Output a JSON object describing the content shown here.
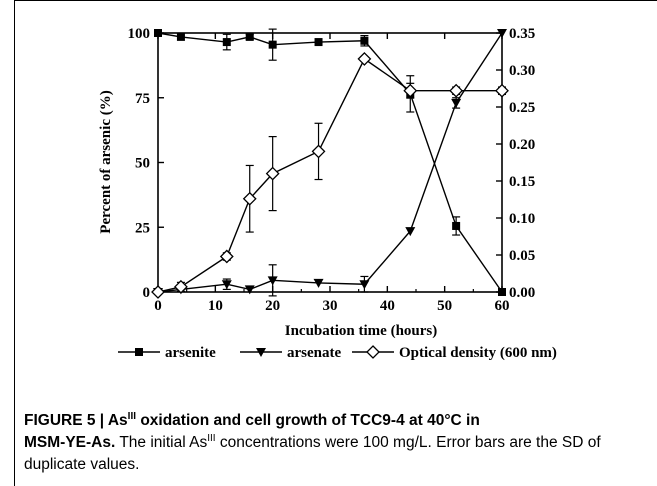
{
  "chart_data": {
    "type": "line",
    "xlabel": "Incubation time (hours)",
    "ylabel": "Percent of arsenic (%)",
    "xlim": [
      0,
      60
    ],
    "ylim_left": [
      0,
      100
    ],
    "ylim_right": [
      0,
      0.35
    ],
    "x_ticks": [
      "0",
      "10",
      "20",
      "30",
      "40",
      "50",
      "60"
    ],
    "y_left_ticks": [
      "0",
      "25",
      "50",
      "75",
      "100"
    ],
    "y_right_ticks": [
      "0.00",
      "0.05",
      "0.10",
      "0.15",
      "0.20",
      "0.25",
      "0.30",
      "0.35"
    ],
    "legend_position": "bottom",
    "series": [
      {
        "name": "arsenite",
        "axis": "left",
        "marker": "square",
        "x": [
          0,
          4,
          12,
          16,
          20,
          28,
          36,
          44,
          52,
          60
        ],
        "y": [
          100,
          98.5,
          96.5,
          98.5,
          95.5,
          96.5,
          97,
          76.5,
          25.5,
          0
        ],
        "err": [
          0,
          0,
          3,
          1,
          6,
          0,
          2,
          7,
          3.5,
          0
        ]
      },
      {
        "name": "arsenate",
        "axis": "left",
        "marker": "triangle-down",
        "x": [
          0,
          4,
          12,
          16,
          20,
          28,
          36,
          44,
          52,
          60
        ],
        "y": [
          0,
          1,
          3,
          1,
          4.5,
          3.5,
          3,
          23.5,
          73,
          100
        ],
        "err": [
          0,
          0,
          2,
          0,
          6,
          0,
          3,
          0,
          2,
          0
        ]
      },
      {
        "name": "Optical density (600 nm)",
        "axis": "right",
        "marker": "diamond-open",
        "x": [
          0,
          4,
          12,
          16,
          20,
          28,
          36,
          44,
          52,
          60
        ],
        "y": [
          0.0,
          0.007,
          0.048,
          0.126,
          0.16,
          0.19,
          0.315,
          0.272,
          0.272,
          0.272
        ],
        "err": [
          0,
          0.006,
          0.005,
          0.045,
          0.05,
          0.038,
          0.003,
          0.01,
          0.005,
          0.005
        ]
      }
    ]
  },
  "caption": {
    "figure_label": "FIGURE 5 | As",
    "figure_label_sup": "III",
    "title_rest_line1": " oxidation and cell growth of TCC9-4 at 40°C in",
    "title_line2": "MSM-YE-As.",
    "body_prefix": " The initial As",
    "body_sup": "III",
    "body_rest": " concentrations were 100 mg/L. Error bars are the SD of duplicate values."
  }
}
